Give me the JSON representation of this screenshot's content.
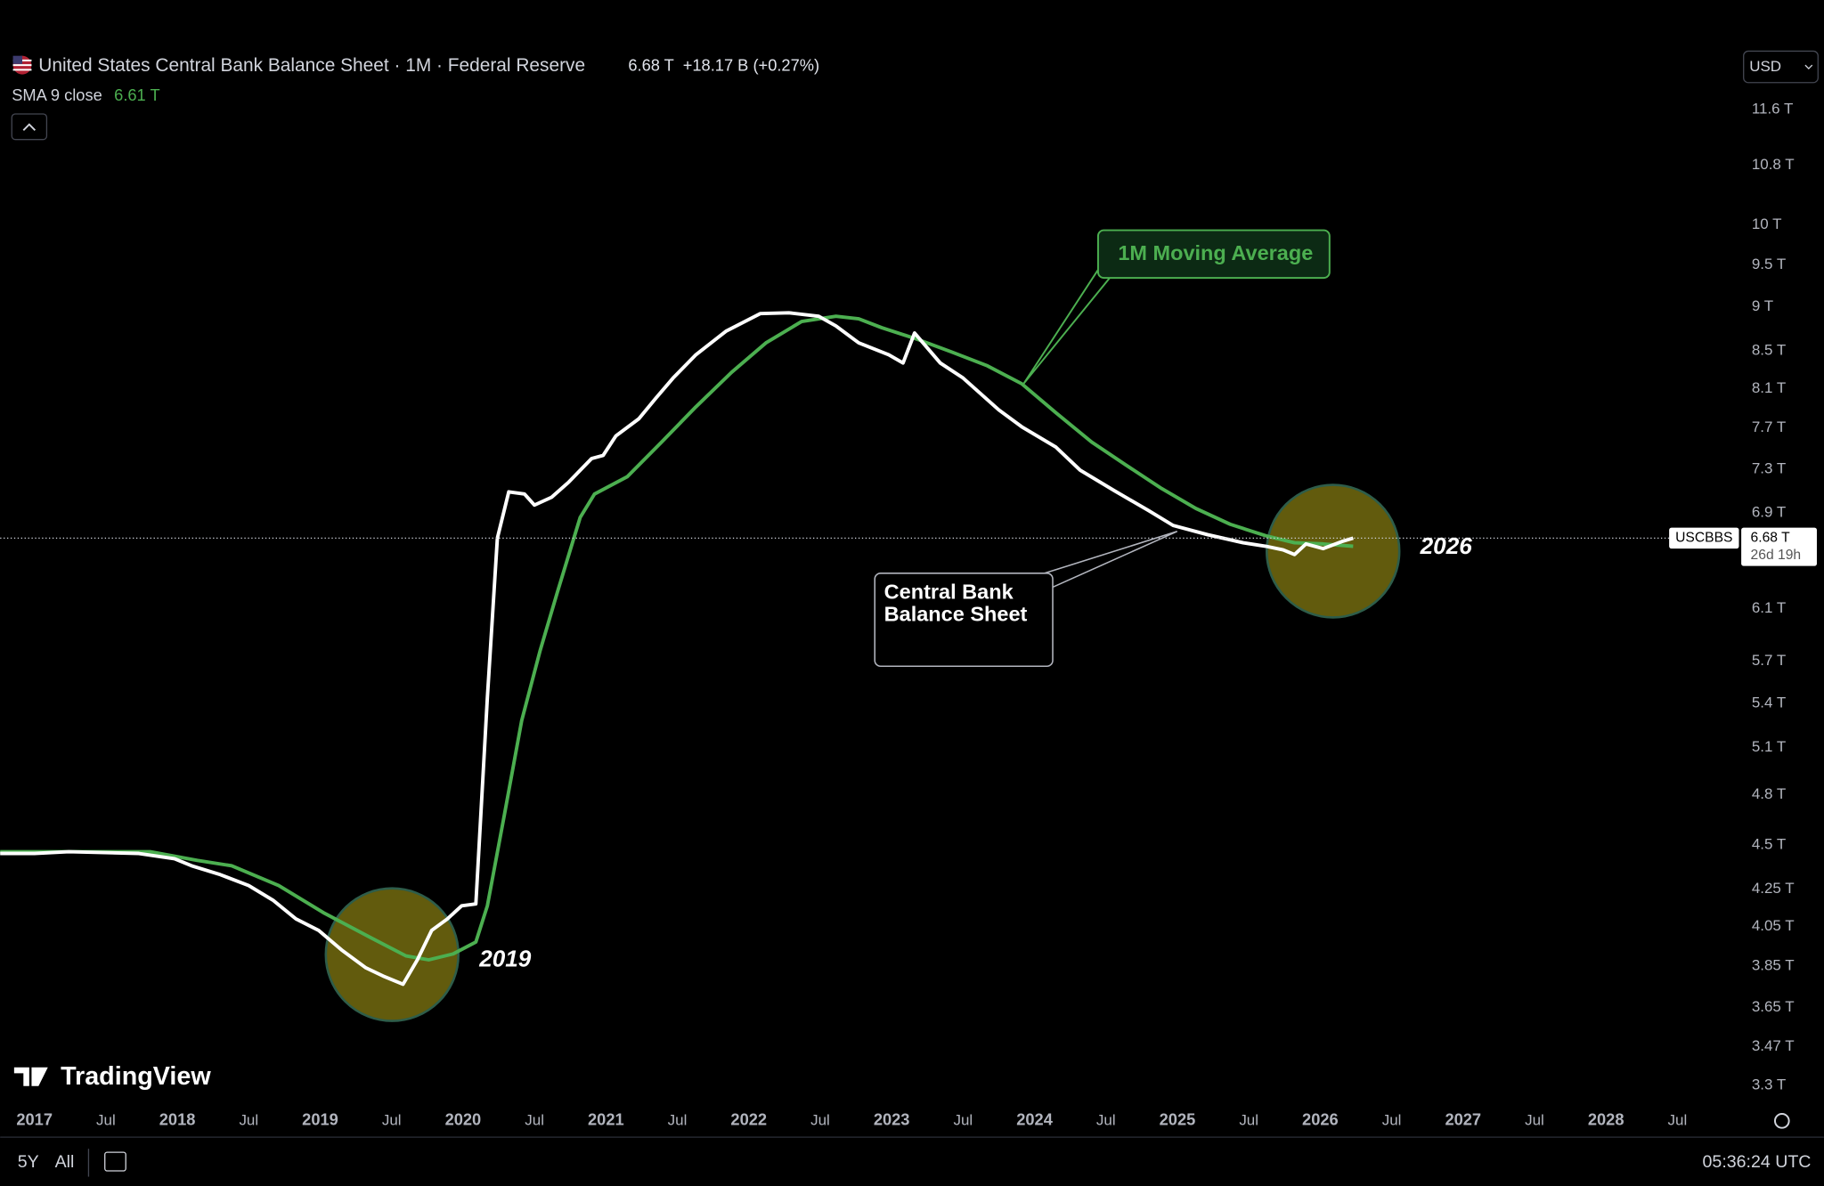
{
  "chart_data": {
    "type": "line",
    "title": "United States Central Bank Balance Sheet · 1M · Federal Reserve",
    "last_value_label": "6.68 T",
    "change_label": "+18.17 B (+0.27%)",
    "indicator_label": "SMA 9 close",
    "indicator_value_label": "6.61 T",
    "currency": "USD",
    "symbol": "USCBBS",
    "countdown": "26d 19h",
    "log_scale": true,
    "grid": false,
    "xlim": [
      2016.76,
      2028.89
    ],
    "ylim": [
      3.22,
      13.36
    ],
    "xticks": [
      2017,
      {
        "value": 2017.5,
        "label": "Jul"
      },
      2018,
      {
        "value": 2018.5,
        "label": "Jul"
      },
      2019,
      {
        "value": 2019.5,
        "label": "Jul"
      },
      2020,
      {
        "value": 2020.5,
        "label": "Jul"
      },
      2021,
      {
        "value": 2021.5,
        "label": "Jul"
      },
      2022,
      {
        "value": 2022.5,
        "label": "Jul"
      },
      2023,
      {
        "value": 2023.5,
        "label": "Jul"
      },
      2024,
      {
        "value": 2024.5,
        "label": "Jul"
      },
      2025,
      {
        "value": 2025.5,
        "label": "Jul"
      },
      2026,
      {
        "value": 2026.5,
        "label": "Jul"
      },
      2027,
      {
        "value": 2027.5,
        "label": "Jul"
      },
      2028,
      {
        "value": 2028.5,
        "label": "Jul"
      }
    ],
    "yticks": [
      {
        "value": 3.3,
        "label": "3.3 T"
      },
      {
        "value": 3.47,
        "label": "3.47 T"
      },
      {
        "value": 3.65,
        "label": "3.65 T"
      },
      {
        "value": 3.85,
        "label": "3.85 T"
      },
      {
        "value": 4.05,
        "label": "4.05 T"
      },
      {
        "value": 4.25,
        "label": "4.25 T"
      },
      {
        "value": 4.5,
        "label": "4.5 T"
      },
      {
        "value": 4.8,
        "label": "4.8 T"
      },
      {
        "value": 5.1,
        "label": "5.1 T"
      },
      {
        "value": 5.4,
        "label": "5.4 T"
      },
      {
        "value": 5.7,
        "label": "5.7 T"
      },
      {
        "value": 6.1,
        "label": "6.1 T"
      },
      {
        "value": 6.9,
        "label": "6.9 T"
      },
      {
        "value": 7.3,
        "label": "7.3 T"
      },
      {
        "value": 7.7,
        "label": "7.7 T"
      },
      {
        "value": 8.1,
        "label": "8.1 T"
      },
      {
        "value": 8.5,
        "label": "8.5 T"
      },
      {
        "value": 9,
        "label": "9 T"
      },
      {
        "value": 9.5,
        "label": "9.5 T"
      },
      {
        "value": 10,
        "label": "10 T"
      },
      {
        "value": 10.8,
        "label": "10.8 T"
      },
      {
        "value": 11.6,
        "label": "11.6 T"
      }
    ],
    "series": [
      {
        "name": "Central Bank Balance Sheet",
        "color": "#ffffff",
        "x": [
          2016.76,
          2017.0,
          2017.24,
          2017.73,
          2017.98,
          2018.1,
          2018.3,
          2018.5,
          2018.67,
          2018.83,
          2018.99,
          2019.15,
          2019.32,
          2019.44,
          2019.58,
          2019.68,
          2019.78,
          2019.89,
          2019.99,
          2020.09,
          2020.17,
          2020.24,
          2020.32,
          2020.43,
          2020.5,
          2020.62,
          2020.74,
          2020.9,
          2020.98,
          2021.07,
          2021.23,
          2021.35,
          2021.47,
          2021.63,
          2021.84,
          2022.08,
          2022.28,
          2022.49,
          2022.61,
          2022.77,
          2022.98,
          2023.08,
          2023.16,
          2023.34,
          2023.5,
          2023.75,
          2023.91,
          2024.15,
          2024.32,
          2024.56,
          2024.8,
          2024.97,
          2025.21,
          2025.46,
          2025.62,
          2025.74,
          2025.82,
          2025.9,
          2026.02,
          2026.15,
          2026.23
        ],
        "values": [
          4.45,
          4.45,
          4.46,
          4.45,
          4.42,
          4.38,
          4.33,
          4.27,
          4.19,
          4.09,
          4.03,
          3.93,
          3.84,
          3.8,
          3.76,
          3.88,
          4.03,
          4.09,
          4.16,
          4.17,
          5.44,
          6.68,
          7.09,
          7.07,
          6.97,
          7.04,
          7.18,
          7.4,
          7.43,
          7.62,
          7.79,
          8.0,
          8.21,
          8.46,
          8.72,
          8.92,
          8.93,
          8.89,
          8.78,
          8.59,
          8.46,
          8.37,
          8.7,
          8.37,
          8.21,
          7.88,
          7.71,
          7.51,
          7.29,
          7.1,
          6.92,
          6.79,
          6.71,
          6.64,
          6.61,
          6.58,
          6.54,
          6.63,
          6.59,
          6.65,
          6.68
        ]
      },
      {
        "name": "1M Moving Average",
        "color": "#4caf50",
        "x": [
          2016.76,
          2017.81,
          2018.14,
          2018.38,
          2018.71,
          2019.03,
          2019.36,
          2019.6,
          2019.76,
          2019.93,
          2020.09,
          2020.17,
          2020.29,
          2020.41,
          2020.54,
          2020.66,
          2020.82,
          2020.92,
          2021.15,
          2021.39,
          2021.63,
          2021.88,
          2022.12,
          2022.37,
          2022.61,
          2022.77,
          2022.93,
          2023.18,
          2023.42,
          2023.67,
          2023.91,
          2024.15,
          2024.4,
          2024.64,
          2024.89,
          2025.13,
          2025.37,
          2025.62,
          2025.82,
          2026.02,
          2026.23
        ],
        "values": [
          4.46,
          4.46,
          4.41,
          4.38,
          4.27,
          4.12,
          3.99,
          3.9,
          3.88,
          3.91,
          3.97,
          4.16,
          4.68,
          5.28,
          5.78,
          6.23,
          6.86,
          7.07,
          7.23,
          7.56,
          7.91,
          8.27,
          8.59,
          8.83,
          8.89,
          8.86,
          8.76,
          8.63,
          8.49,
          8.34,
          8.15,
          7.85,
          7.56,
          7.34,
          7.12,
          6.94,
          6.8,
          6.7,
          6.64,
          6.63,
          6.61
        ]
      }
    ],
    "annotations": [
      "2019",
      "2026"
    ]
  },
  "ui": {
    "logo": "TradingView",
    "ranges": [
      "5Y",
      "All"
    ],
    "clock": "05:36:24 UTC"
  }
}
